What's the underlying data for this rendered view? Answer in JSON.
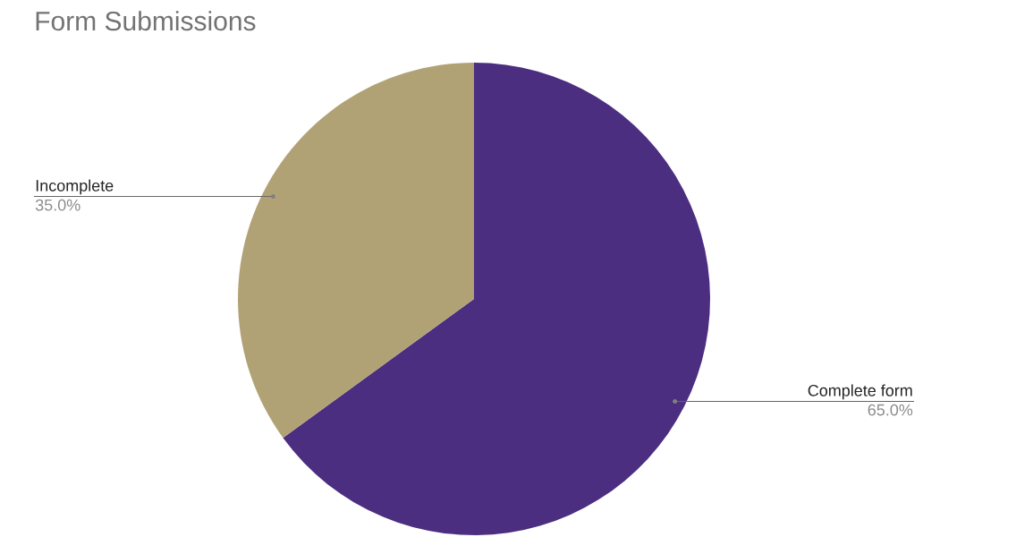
{
  "chart_data": {
    "type": "pie",
    "title": "Form Submissions",
    "categories": [
      "Complete form",
      "Incomplete"
    ],
    "values": [
      65,
      35
    ],
    "colors": [
      "#4b2e80",
      "#b1a276"
    ],
    "value_labels": [
      "65.0%",
      "35.0%"
    ]
  }
}
